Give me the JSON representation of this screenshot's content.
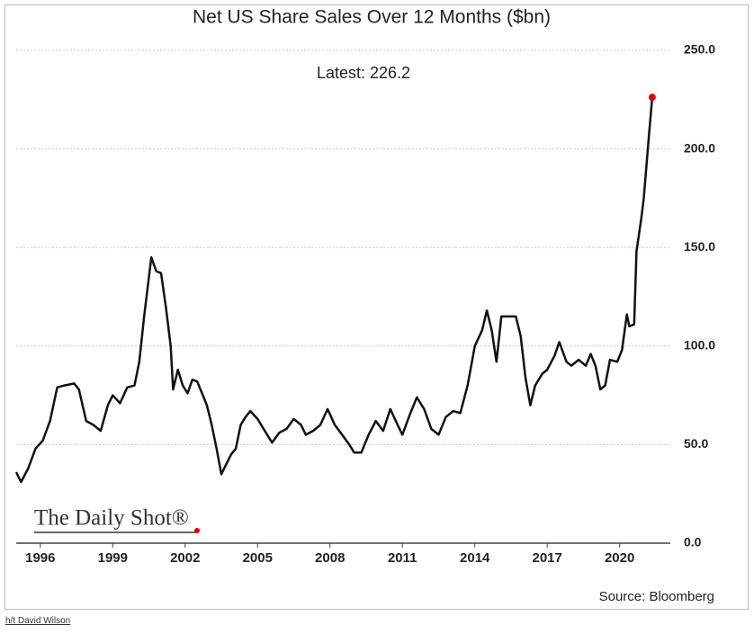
{
  "chart_data": {
    "type": "line",
    "title": "Net US Share Sales Over 12 Months ($bn)",
    "annotation": "Latest:  226.2",
    "logo": "The Daily Shot®",
    "source": "Source: Bloomberg",
    "x": [
      1995.0,
      1995.2,
      1995.5,
      1995.8,
      1996.1,
      1996.4,
      1996.7,
      1997.0,
      1997.4,
      1997.6,
      1997.9,
      1998.2,
      1998.5,
      1998.8,
      1999.0,
      1999.3,
      1999.6,
      1999.9,
      2000.1,
      2000.3,
      2000.5,
      2000.6,
      2000.8,
      2001.0,
      2001.2,
      2001.4,
      2001.5,
      2001.7,
      2001.9,
      2002.1,
      2002.3,
      2002.5,
      2002.7,
      2002.9,
      2003.1,
      2003.3,
      2003.5,
      2003.7,
      2003.9,
      2004.1,
      2004.3,
      2004.5,
      2004.7,
      2005.0,
      2005.3,
      2005.6,
      2005.9,
      2006.2,
      2006.5,
      2006.8,
      2007.0,
      2007.3,
      2007.6,
      2007.9,
      2008.2,
      2008.5,
      2008.8,
      2009.0,
      2009.3,
      2009.6,
      2009.9,
      2010.2,
      2010.5,
      2010.8,
      2011.0,
      2011.3,
      2011.6,
      2011.9,
      2012.2,
      2012.5,
      2012.8,
      2013.1,
      2013.4,
      2013.7,
      2014.0,
      2014.3,
      2014.5,
      2014.7,
      2014.9,
      2015.1,
      2015.4,
      2015.7,
      2015.9,
      2016.1,
      2016.3,
      2016.5,
      2016.8,
      2017.0,
      2017.3,
      2017.5,
      2017.8,
      2018.0,
      2018.3,
      2018.6,
      2018.8,
      2019.0,
      2019.2,
      2019.4,
      2019.6,
      2019.9,
      2020.1,
      2020.3,
      2020.4,
      2020.6,
      2020.7,
      2020.9,
      2021.0,
      2021.2,
      2021.35
    ],
    "values": [
      36,
      31,
      38,
      48,
      52,
      62,
      79,
      80,
      81,
      78,
      62,
      60,
      57,
      70,
      75,
      71,
      79,
      80,
      92,
      115,
      135,
      145,
      138,
      137,
      120,
      100,
      78,
      88,
      80,
      76,
      83,
      82,
      76,
      70,
      60,
      48,
      35,
      40,
      45,
      48,
      60,
      64,
      67,
      63,
      57,
      51,
      56,
      58,
      63,
      60,
      55,
      57,
      60,
      68,
      60,
      55,
      50,
      46,
      46,
      55,
      62,
      57,
      68,
      60,
      55,
      65,
      74,
      68,
      58,
      55,
      64,
      67,
      66,
      80,
      100,
      108,
      118,
      108,
      92,
      115,
      115,
      115,
      105,
      84,
      70,
      80,
      86,
      88,
      95,
      102,
      92,
      90,
      93,
      90,
      96,
      90,
      78,
      80,
      93,
      92,
      98,
      116,
      110,
      111,
      148,
      165,
      175,
      205,
      226.2
    ],
    "color": "#111111",
    "last_point_color": "#e00000",
    "xlim": [
      1995,
      2022.1
    ],
    "xticks": [
      1996,
      1999,
      2002,
      2005,
      2008,
      2011,
      2014,
      2017,
      2020
    ],
    "ylim": [
      0,
      250
    ],
    "yticks": [
      {
        "value": 0,
        "label": "0.0"
      },
      {
        "value": 50,
        "label": "50.0"
      },
      {
        "value": 100,
        "label": "100.0"
      },
      {
        "value": 150,
        "label": "150.0"
      },
      {
        "value": 200,
        "label": "200.0"
      },
      {
        "value": 250,
        "label": "250.0"
      }
    ],
    "grid": true
  },
  "credit": "h/t David Wilson"
}
